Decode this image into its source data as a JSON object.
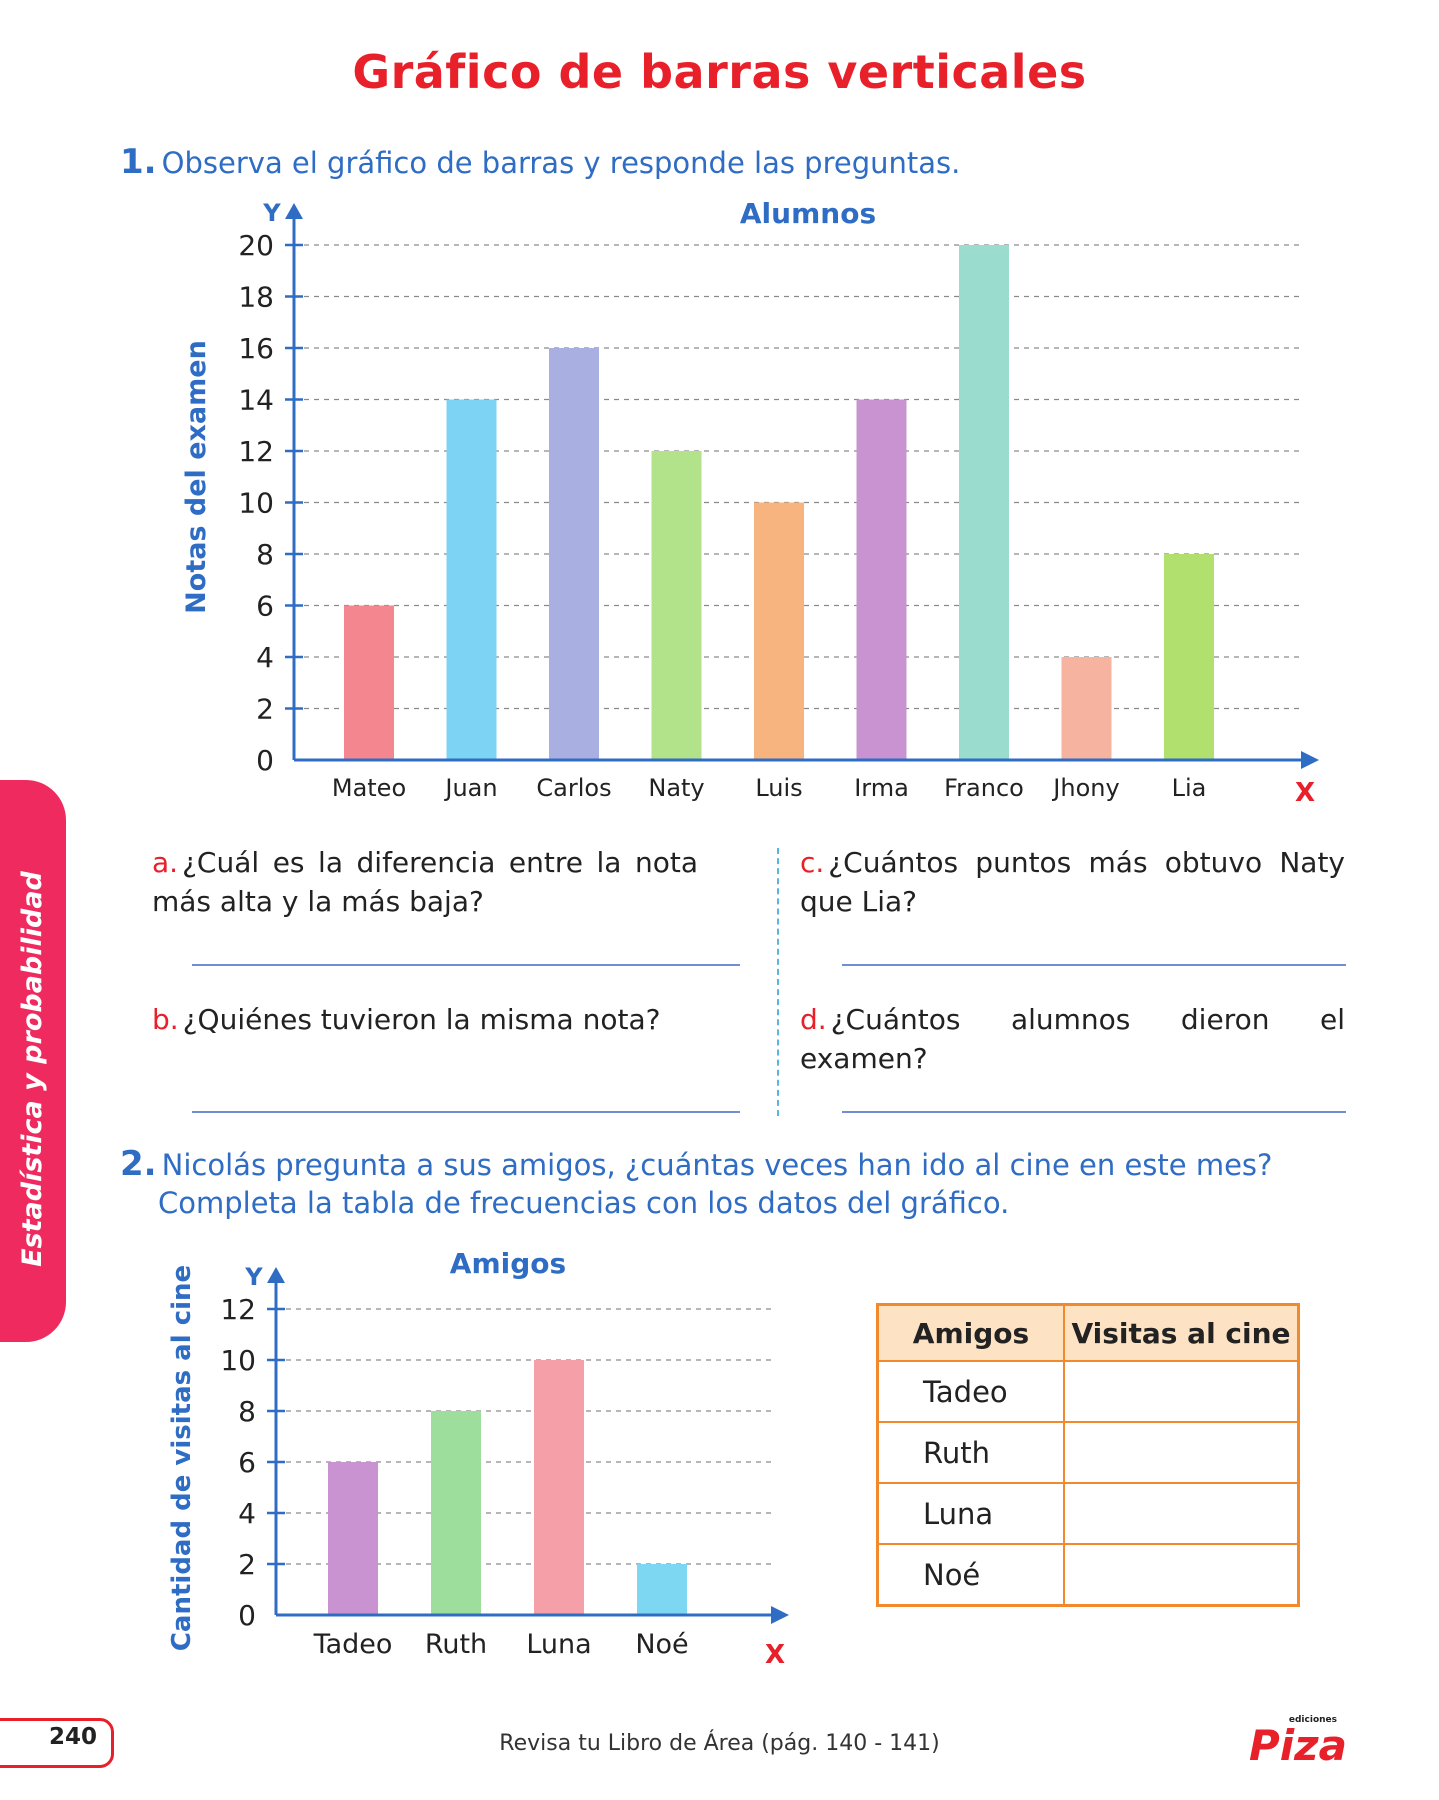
{
  "title": "Gráfico de barras verticales",
  "q1": {
    "number": "1.",
    "text": "Observa el gráfico de barras y responde las preguntas.",
    "subs": [
      {
        "letter": "a.",
        "text": "¿Cuál es la diferencia entre la nota más alta y la más baja?"
      },
      {
        "letter": "b.",
        "text": "¿Quiénes tuvieron la misma nota?"
      },
      {
        "letter": "c.",
        "text": "¿Cuántos puntos más obtuvo Naty que Lia?"
      },
      {
        "letter": "d.",
        "text": "¿Cuántos alumnos dieron el examen?"
      }
    ]
  },
  "q2": {
    "number": "2.",
    "text_line1": "Nicolás pregunta a sus amigos, ¿cuántas veces han ido al cine en este mes?",
    "text_line2": "Completa la tabla de frecuencias con los datos del gráfico."
  },
  "chart_data": [
    {
      "type": "bar",
      "title": "Alumnos",
      "ylabel": "Notas del examen",
      "x_axis_letter": "X",
      "y_axis_letter": "Y",
      "categories": [
        "Mateo",
        "Juan",
        "Carlos",
        "Naty",
        "Luis",
        "Irma",
        "Franco",
        "Jhony",
        "Lia"
      ],
      "values": [
        6,
        14,
        16,
        12,
        10,
        14,
        20,
        4,
        8
      ],
      "colors": [
        "#f4868f",
        "#7dd3f4",
        "#a9afe0",
        "#b2e28a",
        "#f8b47e",
        "#c993d1",
        "#9adccd",
        "#f6b3a0",
        "#b1e06f"
      ],
      "ylim": [
        0,
        20
      ],
      "yticks": [
        0,
        2,
        4,
        6,
        8,
        10,
        12,
        14,
        16,
        18,
        20
      ],
      "grid": true
    },
    {
      "type": "bar",
      "title": "Amigos",
      "ylabel": "Cantidad de visitas al cine",
      "x_axis_letter": "X",
      "y_axis_letter": "Y",
      "categories": [
        "Tadeo",
        "Ruth",
        "Luna",
        "Noé"
      ],
      "values": [
        6,
        8,
        10,
        2
      ],
      "colors": [
        "#c993d1",
        "#9dde9d",
        "#f59fa8",
        "#7dd6f2"
      ],
      "ylim": [
        0,
        12
      ],
      "yticks": [
        0,
        2,
        4,
        6,
        8,
        10,
        12
      ],
      "grid": true
    }
  ],
  "table": {
    "headers": [
      "Amigos",
      "Visitas al cine"
    ],
    "rows": [
      "Tadeo",
      "Ruth",
      "Luna",
      "Noé"
    ]
  },
  "sidebar": "Estadística y probabilidad",
  "page_number": "240",
  "footer": "Revisa tu Libro de Área (pág. 140 - 141)",
  "logo": {
    "small": "ediciones",
    "big": "Piza"
  }
}
